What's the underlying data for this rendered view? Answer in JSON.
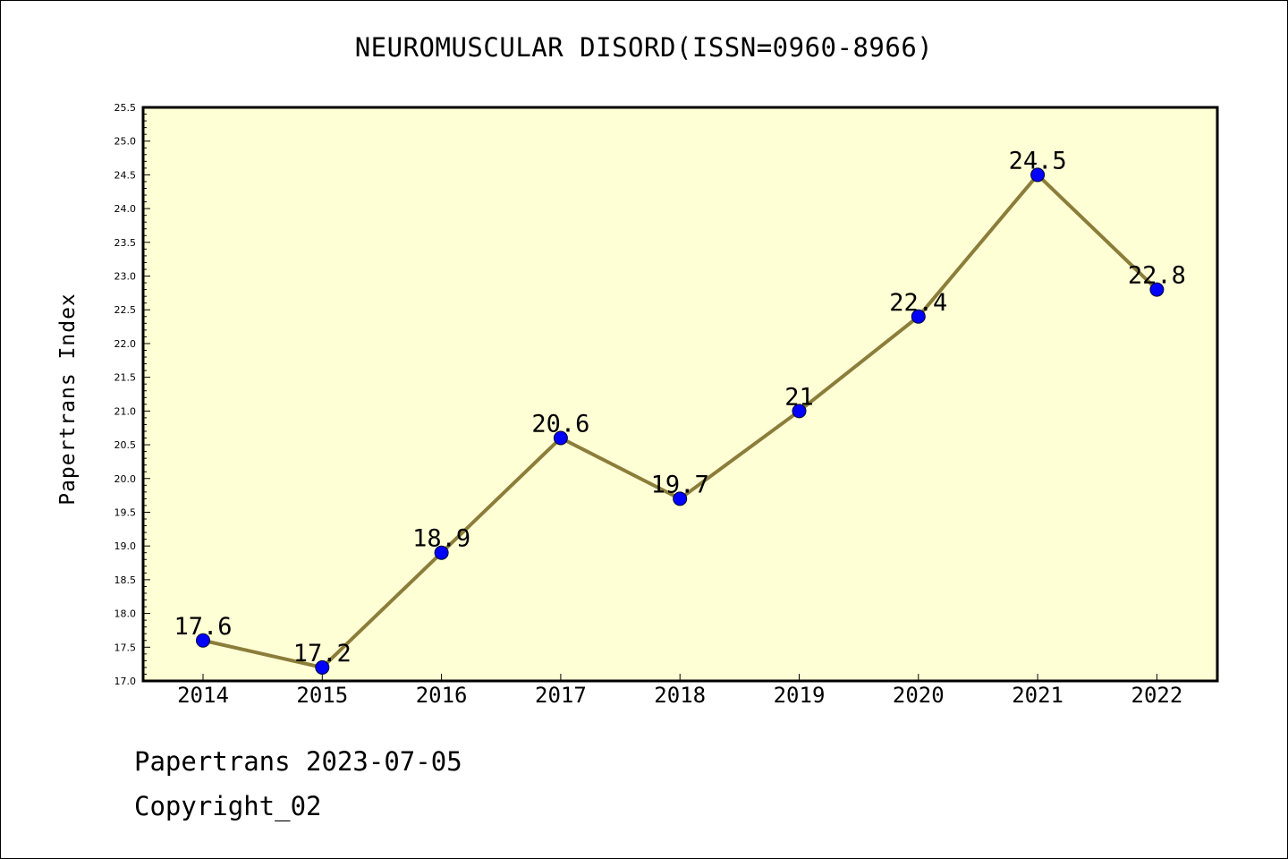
{
  "header": {
    "title": "NEUROMUSCULAR DISORD(ISSN=0960-8966)"
  },
  "footer": {
    "line1": "Papertrans 2023-07-05",
    "line2": "Copyright_02"
  },
  "colors": {
    "plot_background": "#ffffd5",
    "line": "#8b7d3a",
    "marker": "#0000ff",
    "axis": "#000000"
  },
  "chart_data": {
    "type": "line",
    "title": "NEUROMUSCULAR DISORD(ISSN=0960-8966)",
    "xlabel": "",
    "ylabel": "Papertrans Index",
    "categories": [
      "2014",
      "2015",
      "2016",
      "2017",
      "2018",
      "2019",
      "2020",
      "2021",
      "2022"
    ],
    "values": [
      17.6,
      17.2,
      18.9,
      20.6,
      19.7,
      21,
      22.4,
      24.5,
      22.8
    ],
    "data_labels": [
      "17.6",
      "17.2",
      "18.9",
      "20.6",
      "19.7",
      "21",
      "22.4",
      "24.5",
      "22.8"
    ],
    "ylim": [
      17.0,
      25.5
    ],
    "yticks": [
      "17.0",
      "17.5",
      "18.0",
      "18.5",
      "19.0",
      "19.5",
      "20.0",
      "20.5",
      "21.0",
      "21.5",
      "22.0",
      "22.5",
      "23.0",
      "23.5",
      "24.0",
      "24.5",
      "25.0",
      "25.5"
    ],
    "grid": false,
    "legend": "none"
  }
}
